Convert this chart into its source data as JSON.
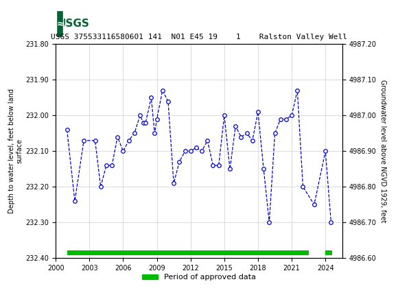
{
  "title": "USGS 375533116580601 141  N01 E45 19    1    Ralston Valley Well",
  "ylabel_left": "Depth to water level, feet below land\nsurface",
  "ylabel_right": "Groundwater level above NGVD 1929, feet",
  "ylim_left": [
    232.4,
    231.8
  ],
  "ylim_right": [
    4986.6,
    4987.2
  ],
  "xlim": [
    2000,
    2025.5
  ],
  "xticks": [
    2000,
    2003,
    2006,
    2009,
    2012,
    2015,
    2018,
    2021,
    2024
  ],
  "yticks_left": [
    231.8,
    231.9,
    232.0,
    232.1,
    232.2,
    232.3,
    232.4
  ],
  "yticks_right": [
    4986.6,
    4986.7,
    4986.8,
    4986.9,
    4987.0,
    4987.1,
    4987.2
  ],
  "data_x": [
    2001.0,
    2001.7,
    2002.5,
    2003.5,
    2004.0,
    2004.5,
    2005.0,
    2005.5,
    2006.0,
    2006.5,
    2007.0,
    2007.5,
    2007.8,
    2008.0,
    2008.5,
    2008.8,
    2009.0,
    2009.5,
    2010.0,
    2010.5,
    2011.0,
    2011.5,
    2012.0,
    2012.5,
    2013.0,
    2013.5,
    2014.0,
    2014.5,
    2015.0,
    2015.5,
    2016.0,
    2016.5,
    2017.0,
    2017.5,
    2018.0,
    2018.5,
    2019.0,
    2019.5,
    2020.0,
    2020.5,
    2021.0,
    2021.5,
    2022.0,
    2023.0,
    2024.0,
    2024.5
  ],
  "data_y": [
    232.04,
    232.24,
    232.07,
    232.07,
    232.2,
    232.14,
    232.14,
    232.06,
    232.1,
    232.07,
    232.05,
    232.0,
    232.02,
    232.02,
    231.95,
    232.05,
    232.01,
    231.93,
    231.96,
    232.19,
    232.13,
    232.1,
    232.1,
    232.09,
    232.1,
    232.07,
    232.14,
    232.14,
    232.0,
    232.15,
    232.03,
    232.06,
    232.05,
    232.07,
    231.99,
    232.15,
    232.3,
    232.05,
    232.01,
    232.01,
    232.0,
    231.93,
    232.2,
    232.25,
    232.1,
    232.3
  ],
  "line_color": "#0000cc",
  "marker_color": "#0000cc",
  "marker_face": "white",
  "approved_bar_color": "#00bb00",
  "approved_bar_y": 232.385,
  "approved_bar_height": 0.012,
  "approved_x_start": 2001.0,
  "approved_x_end": 2022.5,
  "approved_x_start2": 2024.0,
  "approved_x_end2": 2024.6,
  "header_color": "#006633",
  "grid_color": "#cccccc",
  "legend_label": "Period of approved data"
}
